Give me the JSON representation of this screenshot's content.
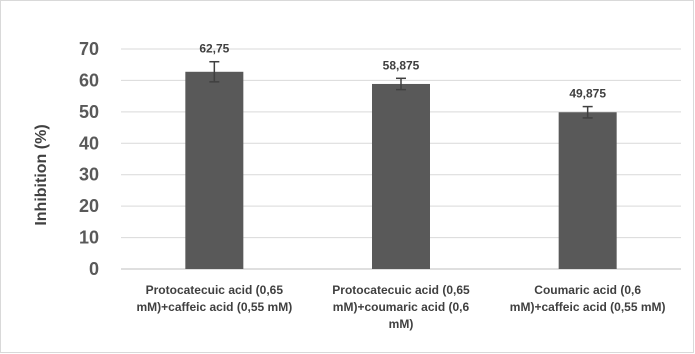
{
  "chart_data": {
    "type": "bar",
    "title": "",
    "xlabel": "",
    "ylabel": "Inhibition (%)",
    "ylim": [
      0,
      70
    ],
    "yticks": [
      0,
      10,
      20,
      30,
      40,
      50,
      60,
      70
    ],
    "grid": true,
    "legend": "none",
    "bar_color": "#595959",
    "error_color": "#404040",
    "categories": [
      [
        "Protocatecuic acid (0,65",
        "mM)+caffeic acid (0,55 mM)"
      ],
      [
        "Protocatecuic acid (0,65",
        "mM)+coumaric acid (0,6",
        "mM)"
      ],
      [
        "Coumaric acid (0,6",
        "mM)+caffeic acid (0,55 mM)"
      ]
    ],
    "values": [
      62.75,
      58.875,
      49.875
    ],
    "value_labels": [
      "62,75",
      "58,875",
      "49,875"
    ],
    "error": [
      3.2,
      1.8,
      1.8
    ]
  }
}
